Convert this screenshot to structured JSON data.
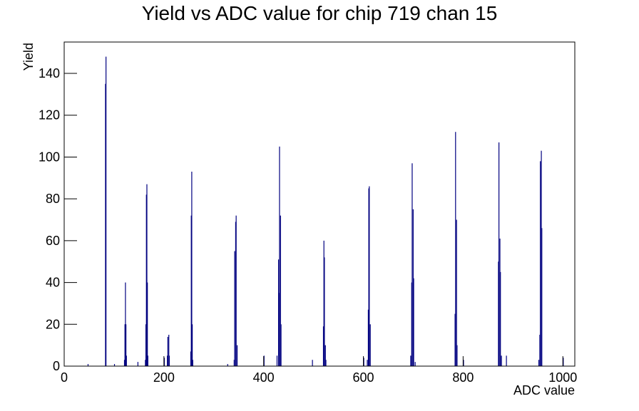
{
  "chart_data": {
    "type": "histogram",
    "title": "Yield vs ADC value for chip 719 chan 15",
    "x_label": "ADC value",
    "y_label": "Yield",
    "color": "#000080",
    "x": [
      47,
      82,
      83,
      100,
      120,
      121,
      122,
      123,
      124,
      147,
      162,
      163,
      164,
      165,
      166,
      167,
      200,
      206,
      207,
      209,
      210,
      253,
      254,
      255,
      256,
      257,
      327,
      340,
      341,
      343,
      344,
      346,
      400,
      426,
      429,
      430,
      431,
      433,
      434,
      497,
      519,
      520,
      521,
      523,
      524,
      600,
      607,
      609,
      610,
      611,
      613,
      694,
      696,
      697,
      699,
      700,
      703,
      783,
      784,
      786,
      787,
      800,
      870,
      871,
      873,
      874,
      876,
      886,
      951,
      953,
      954,
      956,
      957,
      1000
    ],
    "values": [
      1,
      135,
      148,
      1,
      3,
      20,
      40,
      20,
      5,
      2,
      3,
      20,
      82,
      87,
      40,
      5,
      4,
      5,
      14,
      15,
      5,
      7,
      72,
      93,
      20,
      3,
      1,
      3,
      55,
      69,
      72,
      10,
      5,
      5,
      51,
      35,
      105,
      72,
      20,
      3,
      19,
      60,
      52,
      10,
      3,
      4,
      3,
      27,
      85,
      86,
      20,
      5,
      40,
      97,
      75,
      42,
      2,
      25,
      112,
      70,
      10,
      3,
      50,
      107,
      61,
      45,
      5,
      5,
      3,
      15,
      98,
      103,
      66,
      4
    ],
    "xlim": [
      0,
      1024
    ],
    "ylim": [
      0,
      155
    ],
    "xticks": [
      0,
      200,
      400,
      600,
      800,
      1000
    ],
    "yticks": [
      0,
      20,
      40,
      60,
      80,
      100,
      120,
      140
    ]
  }
}
